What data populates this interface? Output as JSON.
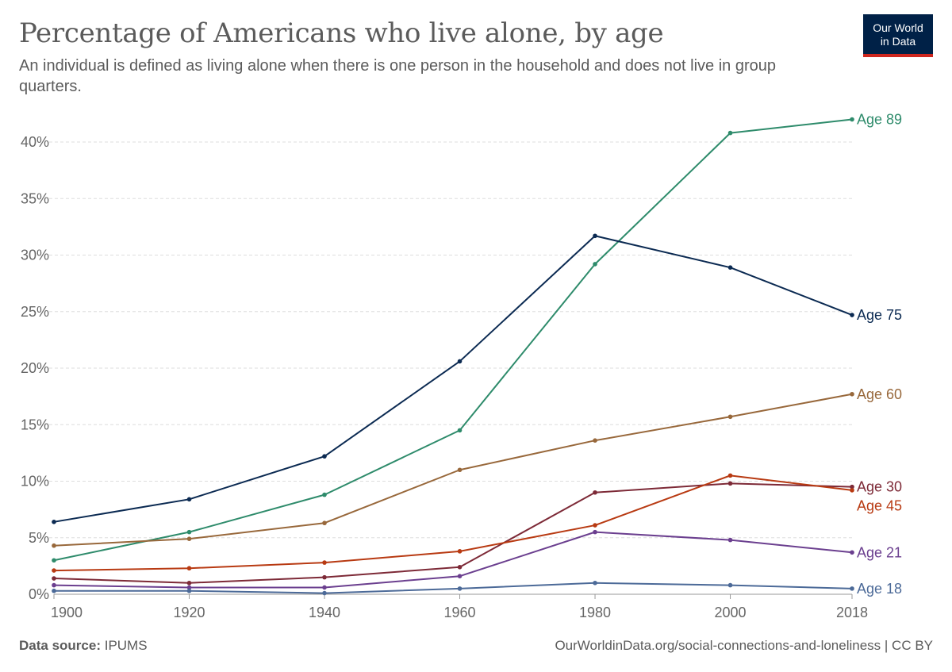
{
  "header": {
    "title": "Percentage of Americans who live alone, by age",
    "subtitle": "An individual is defined as living alone when there is one person in the household and does not live in group quarters.",
    "logo_line1": "Our World",
    "logo_line2": "in Data"
  },
  "footer": {
    "source_label": "Data source:",
    "source_value": "IPUMS",
    "credit": "OurWorldinData.org/social-connections-and-loneliness | CC BY"
  },
  "colors": {
    "logo_bg": "#002147",
    "logo_accent": "#ce261e",
    "grid": "#dddddd",
    "axis": "#666666"
  },
  "chart_data": {
    "type": "line",
    "title": "Percentage of Americans who live alone, by age",
    "xlabel": "",
    "ylabel": "",
    "x": [
      1900,
      1920,
      1940,
      1960,
      1980,
      2000,
      2018
    ],
    "xticks": [
      "1900",
      "1920",
      "1940",
      "1960",
      "1980",
      "2000",
      "2018"
    ],
    "yticks": [
      "0%",
      "5%",
      "10%",
      "15%",
      "20%",
      "25%",
      "30%",
      "35%",
      "40%"
    ],
    "ylim": [
      0,
      42
    ],
    "grid": "horizontal dashed",
    "legend": "inline labels at right end of lines",
    "series": [
      {
        "name": "Age 89",
        "color": "#2e8b6b",
        "values": [
          3.0,
          5.5,
          8.8,
          14.5,
          29.2,
          40.8,
          42.0
        ]
      },
      {
        "name": "Age 75",
        "color": "#0b2a52",
        "values": [
          6.4,
          8.4,
          12.2,
          20.6,
          31.7,
          28.9,
          24.7
        ]
      },
      {
        "name": "Age 60",
        "color": "#98683b",
        "values": [
          4.3,
          4.9,
          6.3,
          11.0,
          13.6,
          15.7,
          17.7
        ]
      },
      {
        "name": "Age 30",
        "color": "#7d2a37",
        "values": [
          1.4,
          1.0,
          1.5,
          2.4,
          9.0,
          9.8,
          9.5
        ]
      },
      {
        "name": "Age 45",
        "color": "#b83a12",
        "values": [
          2.1,
          2.3,
          2.8,
          3.8,
          6.1,
          10.5,
          9.2
        ]
      },
      {
        "name": "Age 21",
        "color": "#6b3f8f",
        "values": [
          0.8,
          0.6,
          0.6,
          1.6,
          5.5,
          4.8,
          3.7
        ]
      },
      {
        "name": "Age 18",
        "color": "#4c6a98",
        "values": [
          0.3,
          0.3,
          0.1,
          0.5,
          1.0,
          0.8,
          0.5
        ]
      }
    ]
  }
}
